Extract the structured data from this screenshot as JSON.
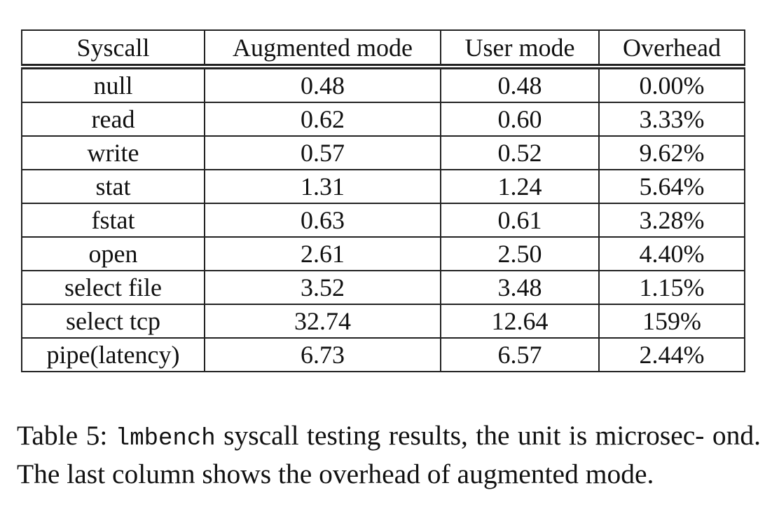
{
  "table": {
    "headers": [
      "Syscall",
      "Augmented mode",
      "User mode",
      "Overhead"
    ],
    "rows": [
      [
        "null",
        "0.48",
        "0.48",
        "0.00%"
      ],
      [
        "read",
        "0.62",
        "0.60",
        "3.33%"
      ],
      [
        "write",
        "0.57",
        "0.52",
        "9.62%"
      ],
      [
        "stat",
        "1.31",
        "1.24",
        "5.64%"
      ],
      [
        "fstat",
        "0.63",
        "0.61",
        "3.28%"
      ],
      [
        "open",
        "2.61",
        "2.50",
        "4.40%"
      ],
      [
        "select file",
        "3.52",
        "3.48",
        "1.15%"
      ],
      [
        "select tcp",
        "32.74",
        "12.64",
        "159%"
      ],
      [
        "pipe(latency)",
        "6.73",
        "6.57",
        "2.44%"
      ]
    ]
  },
  "caption": {
    "label": "Table 5:",
    "code": "lmbench",
    "text_line1_rest": "syscall testing results, the unit is microsec-",
    "text_line2": "ond. The last column shows the overhead of augmented mode."
  }
}
